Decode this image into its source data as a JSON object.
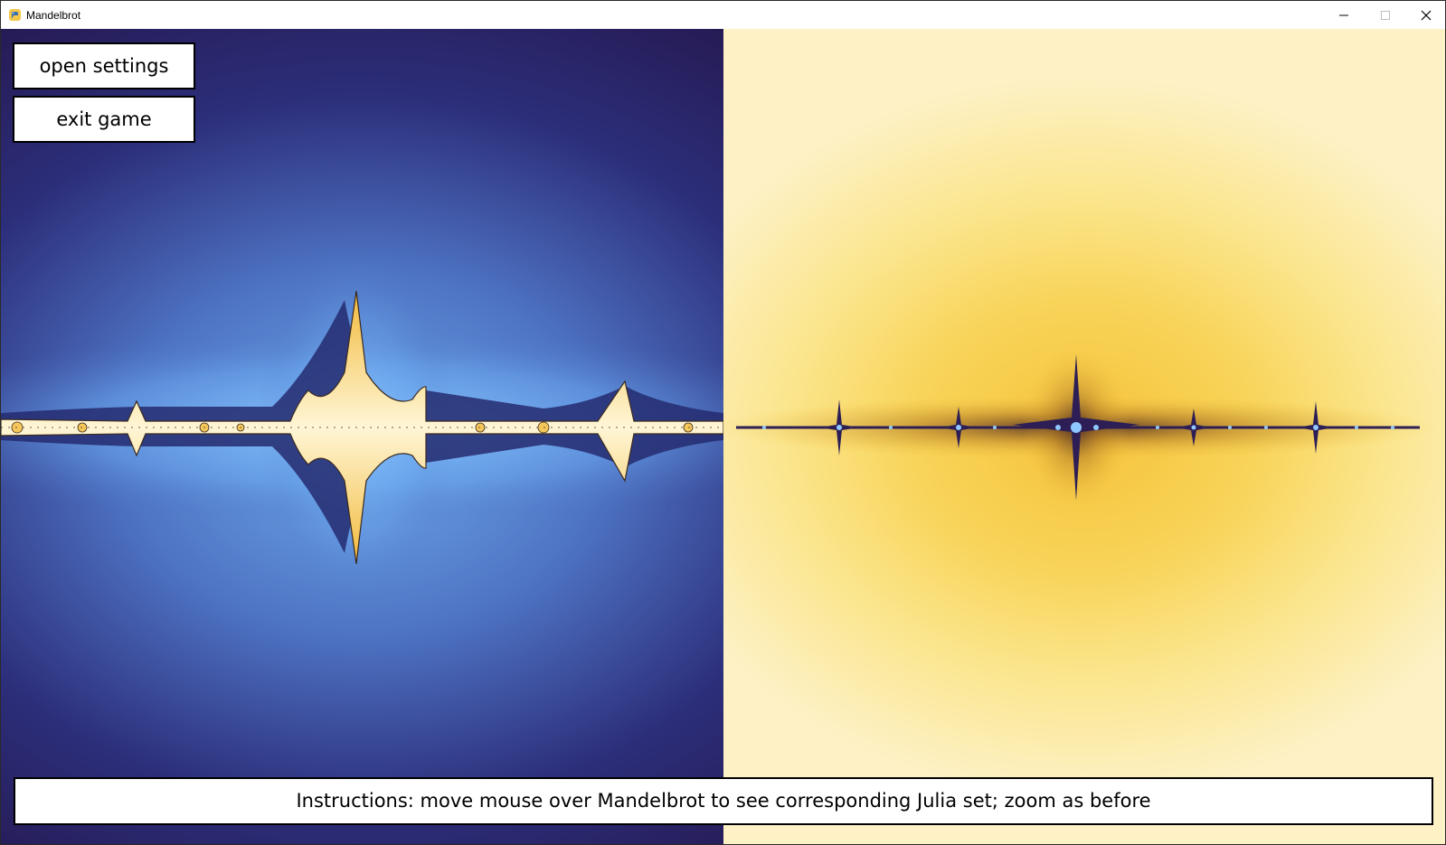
{
  "window": {
    "title": "Mandelbrot",
    "app_icon": "python-snake-icon",
    "controls": {
      "minimize": "minimize-icon",
      "maximize": "maximize-icon",
      "close": "close-icon"
    }
  },
  "buttons": {
    "settings_label": "open settings",
    "exit_label": "exit game"
  },
  "instructions": "Instructions: move mouse over Mandelbrot to see corresponding Julia set; zoom as before",
  "panels": {
    "mandelbrot": {
      "colors": {
        "outer": "#2d133f",
        "mid": "#2c2e7a",
        "glow": "#6ea8ea",
        "set_fill": "#fde9a8",
        "set_edge": "#f2b93a"
      }
    },
    "julia": {
      "colors": {
        "outer": "#fdf1c5",
        "mid": "#f8d459",
        "core": "#f5c33c",
        "set_fill": "#3a2a6a",
        "set_highlight": "#8fc8ff"
      }
    }
  }
}
